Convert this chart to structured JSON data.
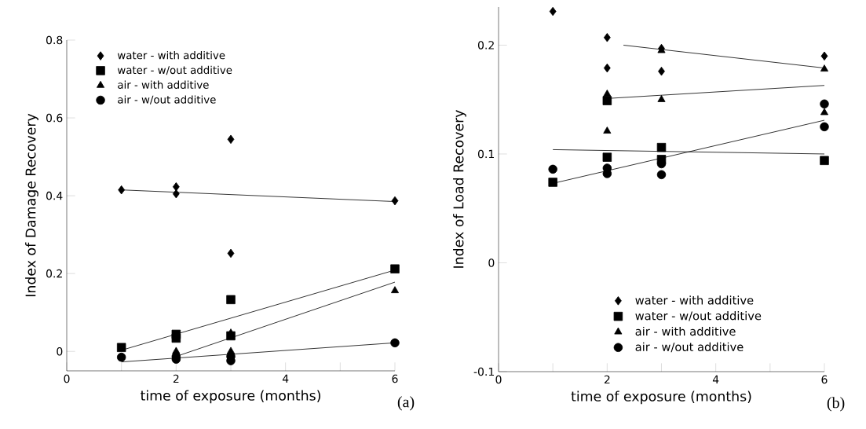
{
  "chart_data": [
    {
      "type": "scatter",
      "xlabel": "time of exposure (months)",
      "ylabel": "Index of Damage Recovery",
      "xlim": [
        0,
        6
      ],
      "ylim": [
        -0.05,
        0.8
      ],
      "xticks": [
        0,
        {
          "value": 1,
          "label": null
        },
        2,
        {
          "value": 3,
          "label": null
        },
        4,
        {
          "value": 5,
          "label": null
        },
        6
      ],
      "yticks": [
        0,
        0.2,
        0.4,
        0.6,
        0.8
      ],
      "legend": "top left",
      "annotations": [
        "(a)"
      ],
      "series": [
        {
          "name": "water - with additive",
          "marker": "diamond",
          "color": "#000000",
          "x": [
            1,
            2,
            2,
            3,
            3,
            6
          ],
          "values": [
            0.415,
            0.423,
            0.405,
            0.545,
            0.252,
            0.387
          ]
        },
        {
          "name": "water - w/out additive",
          "marker": "square",
          "color": "#000000",
          "x": [
            1,
            2,
            2,
            3,
            3,
            6
          ],
          "values": [
            0.01,
            0.044,
            0.034,
            0.133,
            0.04,
            0.212
          ]
        },
        {
          "name": "air - with additive",
          "marker": "triangle",
          "color": "#000000",
          "x": [
            2,
            3,
            3,
            6
          ],
          "values": [
            0.0,
            0.047,
            0.0,
            0.156
          ]
        },
        {
          "name": "air - w/out additive",
          "marker": "circle",
          "color": "#000000",
          "x": [
            1,
            2,
            2,
            3,
            3,
            6
          ],
          "values": [
            -0.015,
            -0.013,
            -0.02,
            -0.013,
            -0.024,
            0.022
          ]
        },
        {
          "type": "line",
          "marker": "none",
          "color": "#000000",
          "x": [
            1,
            6
          ],
          "values": [
            0.415,
            0.385
          ]
        },
        {
          "type": "line",
          "marker": "none",
          "color": "#000000",
          "x": [
            1,
            6
          ],
          "values": [
            0.003,
            0.209
          ]
        },
        {
          "type": "line",
          "marker": "none",
          "color": "#000000",
          "x": [
            2,
            6
          ],
          "values": [
            -0.013,
            0.178
          ]
        },
        {
          "type": "line",
          "marker": "none",
          "color": "#000000",
          "x": [
            1,
            6
          ],
          "values": [
            -0.027,
            0.022
          ]
        }
      ]
    },
    {
      "type": "scatter",
      "xlabel": "time of exposure (months)",
      "ylabel": "Index of Load Recovery",
      "xlim": [
        0,
        6
      ],
      "ylim": [
        -0.1,
        0.235
      ],
      "xticks": [
        0,
        {
          "value": 1,
          "label": null
        },
        2,
        {
          "value": 3,
          "label": null
        },
        4,
        {
          "value": 5,
          "label": null
        },
        6
      ],
      "yticks": [
        -0.1,
        0,
        0.1,
        0.2
      ],
      "legend": "bottom",
      "annotations": [
        "(b)"
      ],
      "series": [
        {
          "name": "water - with additive",
          "marker": "diamond",
          "color": "#000000",
          "x": [
            1,
            2,
            2,
            3,
            3,
            6
          ],
          "values": [
            0.231,
            0.207,
            0.179,
            0.197,
            0.176,
            0.19
          ]
        },
        {
          "name": "water - w/out additive",
          "marker": "square",
          "color": "#000000",
          "x": [
            1,
            2,
            2,
            3,
            3,
            6
          ],
          "values": [
            0.074,
            0.149,
            0.097,
            0.106,
            0.095,
            0.094
          ]
        },
        {
          "name": "air - with additive",
          "marker": "triangle",
          "color": "#000000",
          "x": [
            2,
            2,
            3,
            3,
            6,
            6
          ],
          "values": [
            0.155,
            0.121,
            0.195,
            0.15,
            0.178,
            0.138
          ]
        },
        {
          "name": "air - w/out additive",
          "marker": "circle",
          "color": "#000000",
          "x": [
            1,
            2,
            2,
            3,
            3,
            6,
            6
          ],
          "values": [
            0.086,
            0.087,
            0.082,
            0.091,
            0.081,
            0.146,
            0.125
          ]
        },
        {
          "type": "line",
          "marker": "none",
          "color": "#000000",
          "x": [
            2.3,
            6
          ],
          "values": [
            0.2,
            0.179
          ]
        },
        {
          "type": "line",
          "marker": "none",
          "color": "#000000",
          "x": [
            2,
            6
          ],
          "values": [
            0.151,
            0.163
          ]
        },
        {
          "type": "line",
          "marker": "none",
          "color": "#000000",
          "x": [
            1,
            6
          ],
          "values": [
            0.104,
            0.1
          ]
        },
        {
          "type": "line",
          "marker": "none",
          "color": "#000000",
          "x": [
            1,
            6
          ],
          "values": [
            0.073,
            0.131
          ]
        }
      ]
    }
  ]
}
